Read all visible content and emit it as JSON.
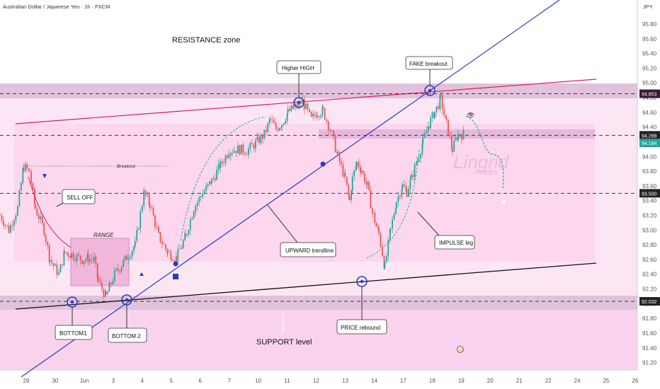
{
  "header": {
    "symbol_title": "Australian Dollar / Japanese Yen · 1h · FXCM",
    "currency": "JPY"
  },
  "watermark": {
    "line1": "Lingrid",
    "line2": "FOREX"
  },
  "chart_data": {
    "type": "line",
    "title": "Australian Dollar / Japanese Yen · 1h · FXCM",
    "ylim": [
      91.1,
      96.05
    ],
    "y_ticks": [
      "95.80",
      "95.60",
      "95.40",
      "95.20",
      "95.00",
      "94.80",
      "94.60",
      "94.40",
      "94.20",
      "94.00",
      "93.80",
      "93.60",
      "93.40",
      "93.20",
      "93.00",
      "92.80",
      "92.60",
      "92.40",
      "92.20",
      "92.00",
      "91.80",
      "91.60",
      "91.40",
      "91.20"
    ],
    "x_ticks": [
      "29",
      "30",
      "Jun",
      "3",
      "4",
      "5",
      "6",
      "7",
      "10",
      "11",
      "12",
      "13",
      "14",
      "17",
      "18",
      "19",
      "20",
      "21",
      "22",
      "24",
      "25",
      "26"
    ],
    "x_range": [
      0,
      21.7
    ],
    "series": [
      {
        "x": [
          0,
          0.3,
          0.6,
          0.8,
          1.0,
          1.2,
          1.5,
          1.7,
          2.0,
          2.2,
          2.5,
          2.8,
          3.0,
          3.2,
          3.35,
          3.6,
          3.9,
          4.2,
          4.6,
          4.9,
          5.1,
          5.4,
          5.7,
          6.0,
          6.3,
          6.6,
          6.9,
          7.2,
          7.5,
          7.8,
          8.1,
          8.4,
          8.7,
          9.0,
          9.2,
          9.4,
          9.6,
          9.8,
          10.0,
          10.3,
          10.6,
          10.8,
          11.0,
          11.3,
          11.5,
          11.75,
          11.9,
          12.0,
          12.15,
          12.3,
          12.5,
          12.7,
          12.9,
          13.1,
          13.3,
          13.5,
          13.7,
          13.85,
          14.0,
          14.2,
          14.4,
          14.6,
          14.8,
          15.0,
          15.2,
          15.4,
          15.6,
          15.8
        ],
        "values": [
          93.2,
          93.0,
          93.3,
          93.86,
          93.8,
          93.3,
          93.0,
          92.6,
          92.4,
          92.7,
          92.66,
          92.6,
          92.62,
          92.6,
          92.3,
          92.1,
          92.4,
          92.56,
          92.8,
          93.5,
          93.36,
          92.92,
          92.7,
          92.62,
          92.9,
          93.3,
          93.5,
          93.66,
          93.88,
          94.08,
          94.1,
          94.08,
          94.18,
          94.3,
          94.5,
          94.38,
          94.45,
          94.6,
          94.66,
          94.75,
          94.5,
          94.6,
          94.62,
          94.3,
          94.0,
          93.7,
          93.4,
          93.7,
          93.92,
          93.82,
          93.6,
          93.2,
          92.95,
          92.5,
          93.0,
          93.4,
          93.6,
          93.52,
          93.7,
          93.95,
          94.2,
          94.44,
          94.6,
          94.78,
          94.44,
          94.1,
          94.3,
          94.3
        ]
      }
    ],
    "levels": [
      {
        "price": 94.853,
        "label": "94.853",
        "color": "#3a1733"
      },
      {
        "price": 94.288,
        "label": "94.288",
        "color": "#222222"
      },
      {
        "price": 94.184,
        "label": "94.184",
        "color": "#26a69a"
      },
      {
        "price": 93.5,
        "label": "93.500",
        "color": "#222222"
      },
      {
        "price": 92.032,
        "label": "92.032",
        "color": "#222222"
      }
    ],
    "annotations": [
      "RESISTANCE zone",
      "Higher HIGH",
      "FAKE breakout",
      "SELL OFF",
      "RANGE",
      "Breakout",
      "UPWARD trendline",
      "IMPULSE leg",
      "BOTTOM1",
      "BOTTOM 2",
      "PRICE rebound",
      "SUPPORT level"
    ],
    "grid": false,
    "colors": {
      "bull": "#26a69a",
      "bear": "#ef5350",
      "trendline": "#2a3bbf",
      "resistance_line": "#d81b60",
      "support_line": "#111111",
      "zone": "#f5c6e6"
    }
  }
}
